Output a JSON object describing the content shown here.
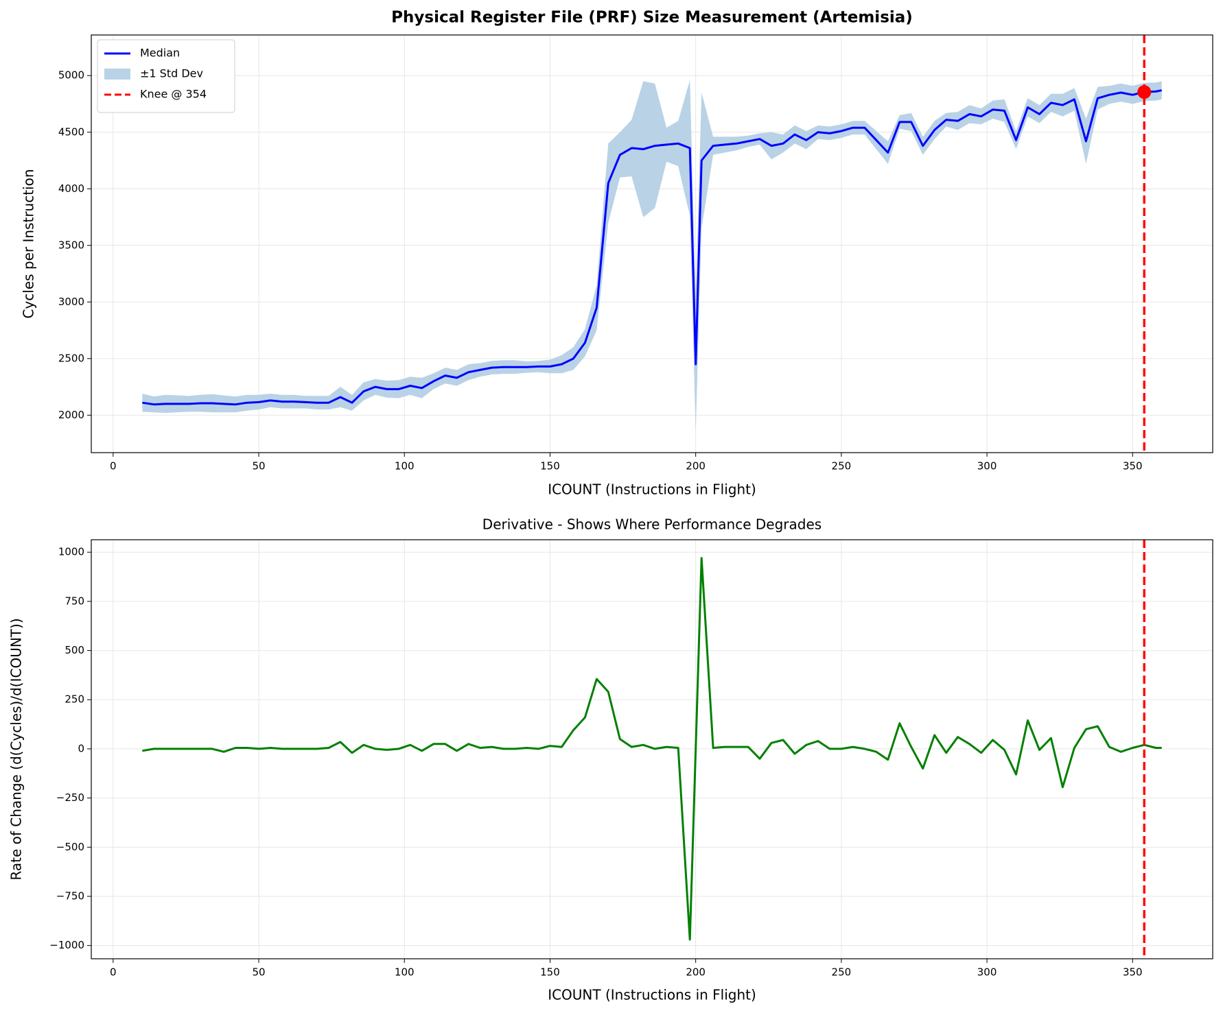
{
  "chart_data": [
    {
      "type": "line",
      "title": "Physical Register File (PRF) Size Measurement (Artemisia)",
      "xlabel": "ICOUNT (Instructions in Flight)",
      "ylabel": "Cycles per Instruction",
      "x": [
        10,
        14,
        18,
        22,
        26,
        30,
        34,
        38,
        42,
        46,
        50,
        54,
        58,
        62,
        66,
        70,
        74,
        78,
        82,
        86,
        90,
        94,
        98,
        102,
        106,
        110,
        114,
        118,
        122,
        126,
        130,
        134,
        138,
        142,
        146,
        150,
        154,
        158,
        162,
        166,
        170,
        174,
        178,
        182,
        186,
        190,
        194,
        198,
        200,
        202,
        206,
        210,
        214,
        218,
        222,
        226,
        230,
        234,
        238,
        242,
        246,
        250,
        254,
        258,
        262,
        266,
        270,
        274,
        278,
        282,
        286,
        290,
        294,
        298,
        302,
        306,
        310,
        314,
        318,
        322,
        326,
        330,
        334,
        338,
        342,
        346,
        350,
        354,
        358,
        360
      ],
      "series": [
        {
          "name": "Median",
          "color": "#0000ff",
          "values": [
            2110,
            2095,
            2100,
            2100,
            2100,
            2105,
            2105,
            2100,
            2095,
            2110,
            2115,
            2130,
            2120,
            2120,
            2115,
            2110,
            2110,
            2160,
            2110,
            2210,
            2250,
            2230,
            2230,
            2260,
            2240,
            2300,
            2350,
            2330,
            2380,
            2400,
            2420,
            2425,
            2425,
            2425,
            2430,
            2430,
            2450,
            2500,
            2640,
            2950,
            4050,
            4300,
            4360,
            4350,
            4380,
            4390,
            4400,
            4360,
            2450,
            4250,
            4380,
            4390,
            4400,
            4420,
            4440,
            4380,
            4400,
            4480,
            4430,
            4500,
            4490,
            4510,
            4540,
            4540,
            4430,
            4320,
            4590,
            4590,
            4380,
            4520,
            4610,
            4600,
            4660,
            4640,
            4700,
            4690,
            4430,
            4720,
            4660,
            4760,
            4740,
            4790,
            4420,
            4800,
            4830,
            4850,
            4830,
            4855,
            4860,
            4870
          ]
        },
        {
          "name": "±1 Std Dev",
          "color": "#b9d2e6",
          "kind": "band",
          "values": [
            80,
            70,
            80,
            75,
            70,
            75,
            80,
            75,
            70,
            70,
            65,
            60,
            60,
            60,
            55,
            60,
            60,
            90,
            70,
            80,
            70,
            75,
            80,
            80,
            90,
            70,
            70,
            70,
            70,
            60,
            60,
            60,
            60,
            50,
            50,
            60,
            80,
            100,
            120,
            200,
            350,
            200,
            250,
            600,
            550,
            150,
            200,
            600,
            600,
            600,
            80,
            70,
            60,
            50,
            50,
            120,
            80,
            80,
            80,
            60,
            60,
            60,
            60,
            60,
            80,
            100,
            60,
            80,
            80,
            80,
            60,
            80,
            80,
            70,
            80,
            100,
            80,
            80,
            80,
            80,
            100,
            100,
            200,
            100,
            80,
            80,
            80,
            80,
            80,
            80
          ]
        }
      ],
      "knee": {
        "name": "Knee @ 354",
        "x": 354,
        "y": 4855,
        "color": "#ff0000"
      },
      "xlim": [
        -7.5,
        377.5
      ],
      "ylim": [
        1669,
        5359
      ],
      "xticks": [
        0,
        50,
        100,
        150,
        200,
        250,
        300,
        350
      ],
      "yticks": [
        2000,
        2500,
        3000,
        3500,
        4000,
        4500,
        5000
      ],
      "grid": true,
      "legend": "upper left"
    },
    {
      "type": "line",
      "title": "Derivative - Shows Where Performance Degrades",
      "xlabel": "ICOUNT (Instructions in Flight)",
      "ylabel": "Rate of Change (d(Cycles)/d(ICOUNT))",
      "x": [
        10,
        14,
        18,
        22,
        26,
        30,
        34,
        38,
        42,
        46,
        50,
        54,
        58,
        62,
        66,
        70,
        74,
        78,
        82,
        86,
        90,
        94,
        98,
        102,
        106,
        110,
        114,
        118,
        122,
        126,
        130,
        134,
        138,
        142,
        146,
        150,
        154,
        158,
        162,
        166,
        170,
        174,
        178,
        182,
        186,
        190,
        194,
        198,
        200,
        202,
        206,
        210,
        214,
        218,
        222,
        226,
        230,
        234,
        238,
        242,
        246,
        250,
        254,
        258,
        262,
        266,
        270,
        274,
        278,
        282,
        286,
        290,
        294,
        298,
        302,
        306,
        310,
        314,
        318,
        322,
        326,
        330,
        334,
        338,
        342,
        346,
        350,
        354,
        358,
        360
      ],
      "values": [
        -10,
        0,
        0,
        0,
        0,
        0,
        0,
        -15,
        5,
        5,
        0,
        5,
        0,
        0,
        0,
        0,
        5,
        35,
        -20,
        20,
        0,
        -5,
        0,
        20,
        -10,
        25,
        25,
        -10,
        25,
        5,
        10,
        0,
        0,
        5,
        0,
        15,
        10,
        95,
        160,
        355,
        290,
        50,
        10,
        20,
        0,
        10,
        5,
        -970,
        0,
        970,
        5,
        10,
        10,
        10,
        -50,
        30,
        45,
        -25,
        20,
        40,
        0,
        0,
        10,
        0,
        -15,
        -55,
        130,
        10,
        -100,
        70,
        -20,
        60,
        25,
        -20,
        45,
        -5,
        -130,
        145,
        -5,
        55,
        -195,
        5,
        100,
        115,
        10,
        -15,
        5,
        20,
        5,
        5
      ],
      "color": "#008000",
      "knee_x": 354,
      "knee_color": "#ff0000",
      "xlim": [
        -7.5,
        377.5
      ],
      "ylim": [
        -1067.5,
        1063.5
      ],
      "xticks": [
        0,
        50,
        100,
        150,
        200,
        250,
        300,
        350
      ],
      "yticks": [
        {
          "value": -1000,
          "label": "−1000"
        },
        {
          "value": -750,
          "label": "−750"
        },
        {
          "value": -500,
          "label": "−500"
        },
        {
          "value": -250,
          "label": "−250"
        },
        0,
        250,
        500,
        750,
        1000
      ],
      "grid": true
    }
  ]
}
